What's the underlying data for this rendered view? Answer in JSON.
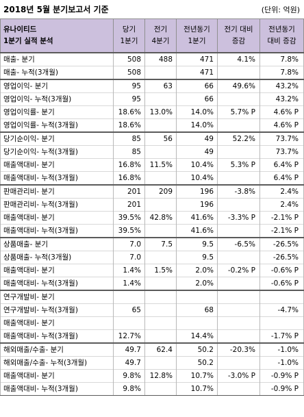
{
  "header": {
    "title": "2018년 5월 분기보고서 기준",
    "unit": "(단위: 억원)"
  },
  "columns": {
    "corner": [
      "유나이티드",
      "1분기 실적 분석"
    ],
    "current": [
      "당기",
      "1분기"
    ],
    "previous": [
      "전기",
      "4분기"
    ],
    "last_year": [
      "전년동기",
      "1분기"
    ],
    "mom": [
      "전기 대비",
      "증감"
    ],
    "yoy": [
      "전년동기",
      "대비 증감"
    ]
  },
  "groups": [
    {
      "rows": [
        {
          "label": "매출- 분기",
          "cur": "508",
          "prev": "488",
          "ly": "471",
          "mom": "4.1%",
          "yoy": "7.8%"
        },
        {
          "label": "매출- 누적(3개월)",
          "cur": "508",
          "prev": "",
          "ly": "471",
          "mom": "",
          "yoy": "7.8%"
        }
      ]
    },
    {
      "rows": [
        {
          "label": "영업이익- 분기",
          "cur": "95",
          "prev": "63",
          "ly": "66",
          "mom": "49.6%",
          "yoy": "43.2%"
        },
        {
          "label": "영업이익- 누적(3개월)",
          "cur": "95",
          "prev": "",
          "ly": "66",
          "mom": "",
          "yoy": "43.2%"
        },
        {
          "label": "영업이익률- 분기",
          "cur": "18.6%",
          "prev": "13.0%",
          "ly": "14.0%",
          "mom": "5.7% P",
          "yoy": "4.6% P"
        },
        {
          "label": "영업이익률- 누적(3개월)",
          "cur": "18.6%",
          "prev": "",
          "ly": "14.0%",
          "mom": "",
          "yoy": "4.6% P"
        }
      ]
    },
    {
      "rows": [
        {
          "label": "당기순이익- 분기",
          "cur": "85",
          "prev": "56",
          "ly": "49",
          "mom": "52.2%",
          "yoy": "73.7%"
        },
        {
          "label": "당기순이익- 누적(3개월)",
          "cur": "85",
          "prev": "",
          "ly": "49",
          "mom": "",
          "yoy": "73.7%"
        },
        {
          "label": "매출액대비- 분기",
          "cur": "16.8%",
          "prev": "11.5%",
          "ly": "10.4%",
          "mom": "5.3% P",
          "yoy": "6.4% P"
        },
        {
          "label": "매출액대비- 누적(3개월)",
          "cur": "16.8%",
          "prev": "",
          "ly": "10.4%",
          "mom": "",
          "yoy": "6.4% P"
        }
      ]
    },
    {
      "rows": [
        {
          "label": "판매관리비- 분기",
          "cur": "201",
          "prev": "209",
          "ly": "196",
          "mom": "-3.8%",
          "yoy": "2.4%"
        },
        {
          "label": "판매관리비- 누적(3개월)",
          "cur": "201",
          "prev": "",
          "ly": "196",
          "mom": "",
          "yoy": "2.4%"
        },
        {
          "label": "매출액대비- 분기",
          "cur": "39.5%",
          "prev": "42.8%",
          "ly": "41.6%",
          "mom": "-3.3% P",
          "yoy": "-2.1% P"
        },
        {
          "label": "매출액대비- 누적(3개월)",
          "cur": "39.5%",
          "prev": "",
          "ly": "41.6%",
          "mom": "",
          "yoy": "-2.1% P"
        }
      ]
    },
    {
      "rows": [
        {
          "label": "상품매출- 분기",
          "cur": "7.0",
          "prev": "7.5",
          "ly": "9.5",
          "mom": "-6.5%",
          "yoy": "-26.5%"
        },
        {
          "label": "상품매출- 누적(3개월)",
          "cur": "7.0",
          "prev": "",
          "ly": "9.5",
          "mom": "",
          "yoy": "-26.5%"
        },
        {
          "label": "매출액대비- 분기",
          "cur": "1.4%",
          "prev": "1.5%",
          "ly": "2.0%",
          "mom": "-0.2% P",
          "yoy": "-0.6% P"
        },
        {
          "label": "매출액대비- 누적(3개월)",
          "cur": "1.4%",
          "prev": "",
          "ly": "2.0%",
          "mom": "",
          "yoy": "-0.6% P"
        }
      ]
    },
    {
      "rows": [
        {
          "label": "연구개발비- 분기",
          "cur": "",
          "prev": "",
          "ly": "",
          "mom": "",
          "yoy": ""
        },
        {
          "label": "연구개발비- 누적(3개월)",
          "cur": "65",
          "prev": "",
          "ly": "68",
          "mom": "",
          "yoy": "-4.7%"
        },
        {
          "label": "매출액대비- 분기",
          "cur": "",
          "prev": "",
          "ly": "",
          "mom": "",
          "yoy": ""
        },
        {
          "label": "매출액대비- 누적(3개월)",
          "cur": "12.7%",
          "prev": "",
          "ly": "14.4%",
          "mom": "",
          "yoy": "-1.7% P"
        }
      ]
    },
    {
      "rows": [
        {
          "label": "해외매출/수출- 분기",
          "cur": "49.7",
          "prev": "62.4",
          "ly": "50.2",
          "mom": "-20.3%",
          "yoy": "-1.0%"
        },
        {
          "label": "해외매출/수출- 누적(3개월)",
          "cur": "49.7",
          "prev": "",
          "ly": "50.2",
          "mom": "",
          "yoy": "-1.0%"
        },
        {
          "label": "매출액대비- 분기",
          "cur": "9.8%",
          "prev": "12.8%",
          "ly": "10.7%",
          "mom": "-3.0% P",
          "yoy": "-0.9% P"
        },
        {
          "label": "매출액대비- 누적(3개월)",
          "cur": "9.8%",
          "prev": "",
          "ly": "10.7%",
          "mom": "",
          "yoy": "-0.9% P"
        }
      ]
    }
  ]
}
